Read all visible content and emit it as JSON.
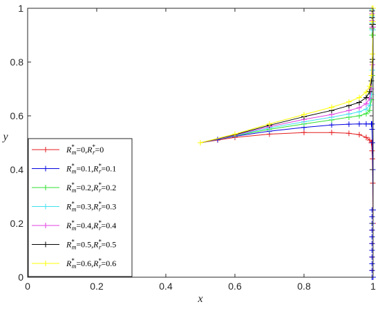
{
  "chart_data": {
    "type": "line",
    "title": "",
    "xlabel": "x",
    "ylabel": "y",
    "xlim": [
      0,
      1
    ],
    "ylim": [
      0,
      1
    ],
    "xticks": [
      "0",
      "0.2",
      "0.4",
      "0.6",
      "0.8",
      "1"
    ],
    "yticks": [
      "0",
      "0.2",
      "0.4",
      "0.6",
      "0.8",
      "1"
    ],
    "grid": false,
    "legend_position": "bottom-left",
    "series": [
      {
        "name": "R*m=0,R*r=0",
        "legend": {
          "a": "R",
          "a_sup": "*",
          "a_sub": "m",
          "b": "=0,",
          "c": "R",
          "c_sup": "*",
          "c_sub": "r",
          "d": "=0"
        },
        "color": "#e41a1c",
        "upper": [
          [
            0.5,
            0.5
          ],
          [
            0.55,
            0.51
          ],
          [
            0.6,
            0.52
          ],
          [
            0.7,
            0.532
          ],
          [
            0.8,
            0.538
          ],
          [
            0.88,
            0.538
          ],
          [
            0.93,
            0.535
          ],
          [
            0.96,
            0.53
          ],
          [
            0.98,
            0.52
          ],
          [
            0.99,
            0.51
          ],
          [
            0.995,
            0.5
          ]
        ],
        "lower": [
          [
            0.995,
            0.5
          ],
          [
            0.997,
            0.47
          ],
          [
            0.998,
            0.44
          ],
          [
            0.999,
            0.35
          ],
          [
            1.0,
            0.2
          ],
          [
            1.0,
            0.0
          ]
        ]
      },
      {
        "name": "R*m=0.1,R*r=0.1",
        "legend": {
          "a": "R",
          "a_sup": "*",
          "a_sub": "m",
          "b": "=0.1,",
          "c": "R",
          "c_sup": "*",
          "c_sub": "r",
          "d": "=0.1"
        },
        "color": "#0000e0",
        "upper": [
          [
            0.5,
            0.5
          ],
          [
            0.55,
            0.512
          ],
          [
            0.6,
            0.524
          ],
          [
            0.7,
            0.543
          ],
          [
            0.8,
            0.557
          ],
          [
            0.88,
            0.566
          ],
          [
            0.93,
            0.569
          ],
          [
            0.96,
            0.57
          ],
          [
            0.98,
            0.57
          ],
          [
            0.995,
            0.57
          ]
        ],
        "lower": [
          [
            0.995,
            0.57
          ],
          [
            0.997,
            0.55
          ],
          [
            0.998,
            0.5
          ],
          [
            0.999,
            0.4
          ],
          [
            1.0,
            0.25
          ],
          [
            1.0,
            0.0
          ]
        ]
      },
      {
        "name": "R*m=0.2,R*r=0.2",
        "legend": {
          "a": "R",
          "a_sup": "*",
          "a_sub": "m",
          "b": "=0.2,",
          "c": "R",
          "c_sup": "*",
          "c_sub": "r",
          "d": "=0.2"
        },
        "color": "#2ee02e",
        "upper": [
          [
            0.5,
            0.5
          ],
          [
            0.6,
            0.526
          ],
          [
            0.7,
            0.55
          ],
          [
            0.8,
            0.57
          ],
          [
            0.88,
            0.585
          ],
          [
            0.93,
            0.595
          ],
          [
            0.96,
            0.6
          ],
          [
            0.98,
            0.608
          ],
          [
            0.99,
            0.62
          ],
          [
            0.995,
            0.66
          ],
          [
            0.998,
            0.75
          ],
          [
            1.0,
            0.9
          ],
          [
            1.0,
            1.0
          ]
        ],
        "lower": []
      },
      {
        "name": "R*m=0.3,R*r=0.3",
        "legend": {
          "a": "R",
          "a_sup": "*",
          "a_sub": "m",
          "b": "=0.3,",
          "c": "R",
          "c_sup": "*",
          "c_sub": "r",
          "d": "=0.3"
        },
        "color": "#3fe0f0",
        "upper": [
          [
            0.5,
            0.5
          ],
          [
            0.6,
            0.527
          ],
          [
            0.7,
            0.555
          ],
          [
            0.8,
            0.578
          ],
          [
            0.88,
            0.595
          ],
          [
            0.93,
            0.607
          ],
          [
            0.96,
            0.615
          ],
          [
            0.98,
            0.625
          ],
          [
            0.99,
            0.64
          ],
          [
            0.995,
            0.68
          ],
          [
            0.998,
            0.77
          ],
          [
            1.0,
            0.92
          ],
          [
            1.0,
            1.0
          ]
        ],
        "lower": []
      },
      {
        "name": "R*m=0.4,R*r=0.4",
        "legend": {
          "a": "R",
          "a_sup": "*",
          "a_sub": "m",
          "b": "=0.4,",
          "c": "R",
          "c_sup": "*",
          "c_sub": "r",
          "d": "=0.4"
        },
        "color": "#e03fe0",
        "upper": [
          [
            0.5,
            0.5
          ],
          [
            0.6,
            0.528
          ],
          [
            0.7,
            0.56
          ],
          [
            0.8,
            0.587
          ],
          [
            0.88,
            0.605
          ],
          [
            0.93,
            0.62
          ],
          [
            0.96,
            0.63
          ],
          [
            0.98,
            0.645
          ],
          [
            0.99,
            0.665
          ],
          [
            0.995,
            0.7
          ],
          [
            0.998,
            0.79
          ],
          [
            1.0,
            0.93
          ],
          [
            1.0,
            1.0
          ]
        ],
        "lower": []
      },
      {
        "name": "R*m=0.5,R*r=0.5",
        "legend": {
          "a": "R",
          "a_sup": "*",
          "a_sub": "m",
          "b": "=0.5,",
          "c": "R",
          "c_sup": "*",
          "c_sub": "r",
          "d": "=0.5"
        },
        "color": "#000000",
        "upper": [
          [
            0.5,
            0.5
          ],
          [
            0.6,
            0.53
          ],
          [
            0.7,
            0.565
          ],
          [
            0.8,
            0.597
          ],
          [
            0.88,
            0.62
          ],
          [
            0.93,
            0.638
          ],
          [
            0.96,
            0.65
          ],
          [
            0.98,
            0.668
          ],
          [
            0.99,
            0.69
          ],
          [
            0.995,
            0.73
          ],
          [
            0.998,
            0.81
          ],
          [
            1.0,
            0.94
          ],
          [
            1.0,
            1.0
          ]
        ],
        "lower": []
      },
      {
        "name": "R*m=0.6,R*r=0.6",
        "legend": {
          "a": "R",
          "a_sup": "*",
          "a_sub": "m",
          "b": "=0.6,",
          "c": "R",
          "c_sup": "*",
          "c_sub": "r",
          "d": "=0.6"
        },
        "color": "#ffff00",
        "upper": [
          [
            0.5,
            0.5
          ],
          [
            0.6,
            0.532
          ],
          [
            0.7,
            0.57
          ],
          [
            0.8,
            0.605
          ],
          [
            0.88,
            0.632
          ],
          [
            0.93,
            0.652
          ],
          [
            0.96,
            0.668
          ],
          [
            0.98,
            0.688
          ],
          [
            0.99,
            0.71
          ],
          [
            0.995,
            0.75
          ],
          [
            0.998,
            0.83
          ],
          [
            1.0,
            0.95
          ],
          [
            1.0,
            1.0
          ]
        ],
        "lower": []
      }
    ]
  }
}
